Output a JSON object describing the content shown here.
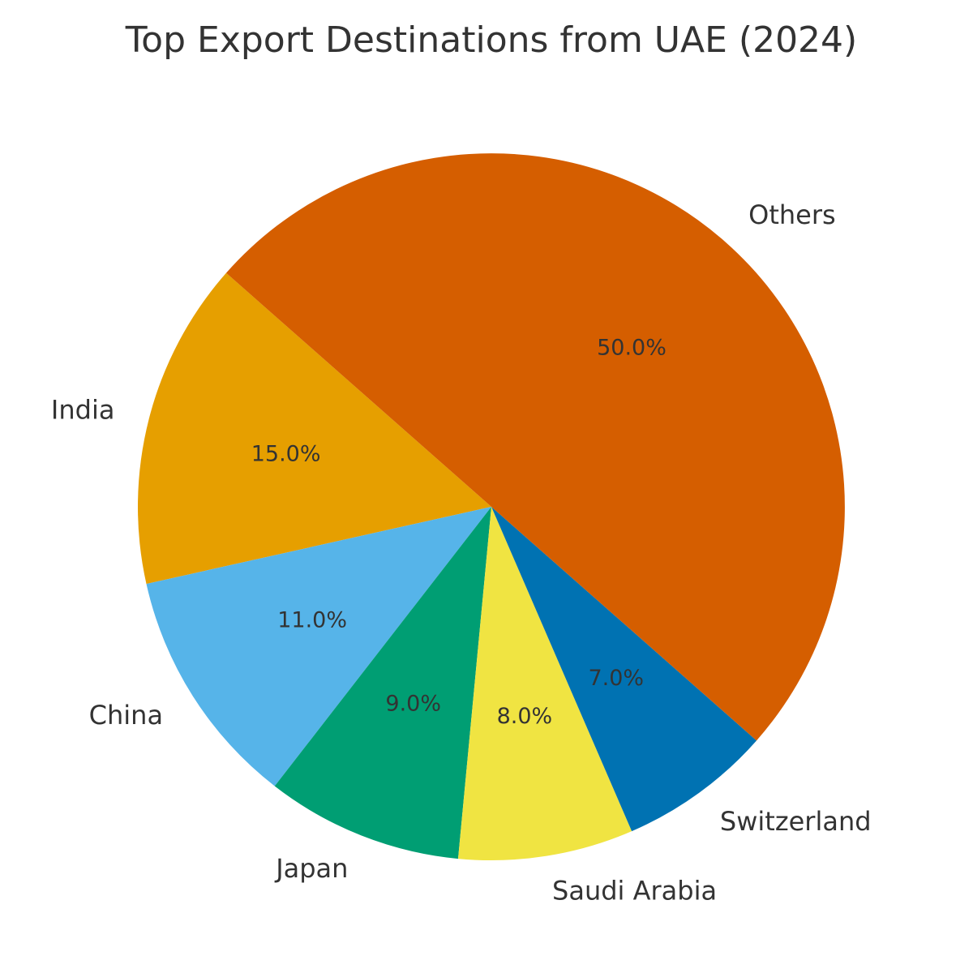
{
  "chart_data": {
    "type": "pie",
    "title": "Top Export Destinations from UAE (2024)",
    "start_angle_deg": 138.6,
    "direction": "counterclockwise",
    "slices": [
      {
        "label": "India",
        "value": 15.0,
        "pct_label": "15.0%",
        "color": "#E69F00"
      },
      {
        "label": "China",
        "value": 11.0,
        "pct_label": "11.0%",
        "color": "#56B4E9"
      },
      {
        "label": "Japan",
        "value": 9.0,
        "pct_label": "9.0%",
        "color": "#009E73"
      },
      {
        "label": "Saudi Arabia",
        "value": 8.0,
        "pct_label": "8.0%",
        "color": "#F0E442"
      },
      {
        "label": "Switzerland",
        "value": 7.0,
        "pct_label": "7.0%",
        "color": "#0072B2"
      },
      {
        "label": "Others",
        "value": 50.0,
        "pct_label": "50.0%",
        "color": "#D55E00"
      }
    ]
  }
}
